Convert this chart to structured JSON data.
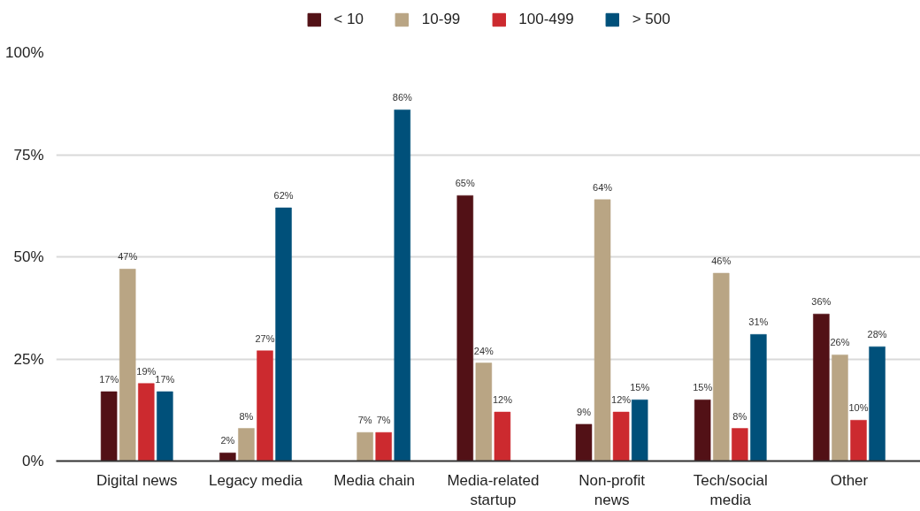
{
  "chart_data": {
    "type": "bar",
    "categories": [
      "Digital news",
      "Legacy media",
      "Media chain",
      "Media-related startup",
      "Non-profit news",
      "Tech/social media",
      "Other"
    ],
    "series": [
      {
        "name": "< 10",
        "color": "#521116",
        "values": [
          17,
          2,
          null,
          65,
          9,
          15,
          36
        ],
        "value_labels": [
          "17%",
          "2%",
          null,
          "65%",
          "9%",
          "15%",
          "36%"
        ]
      },
      {
        "name": "10-99",
        "color": "#b9a584",
        "values": [
          47,
          8,
          7,
          24,
          64,
          46,
          26
        ],
        "value_labels": [
          "47%",
          "8%",
          "7%",
          "24%",
          "64%",
          "46%",
          "26%"
        ]
      },
      {
        "name": "100-499",
        "color": "#cc2a2f",
        "values": [
          19,
          27,
          7,
          12,
          12,
          8,
          10
        ],
        "value_labels": [
          "19%",
          "27%",
          "7%",
          "12%",
          "12%",
          "8%",
          "10%"
        ]
      },
      {
        "name": "> 500",
        "color": "#00507a",
        "values": [
          17,
          62,
          86,
          null,
          15,
          31,
          28
        ],
        "value_labels": [
          "17%",
          "62%",
          "86%",
          null,
          "15%",
          "31%",
          "28%"
        ]
      }
    ],
    "ylim": [
      0,
      100
    ],
    "yticks": [
      {
        "value": 0,
        "label": "0%"
      },
      {
        "value": 25,
        "label": "25%"
      },
      {
        "value": 50,
        "label": "50%"
      },
      {
        "value": 75,
        "label": "75%"
      },
      {
        "value": 100,
        "label": "100%"
      }
    ],
    "grid": "y",
    "legend": "top"
  }
}
